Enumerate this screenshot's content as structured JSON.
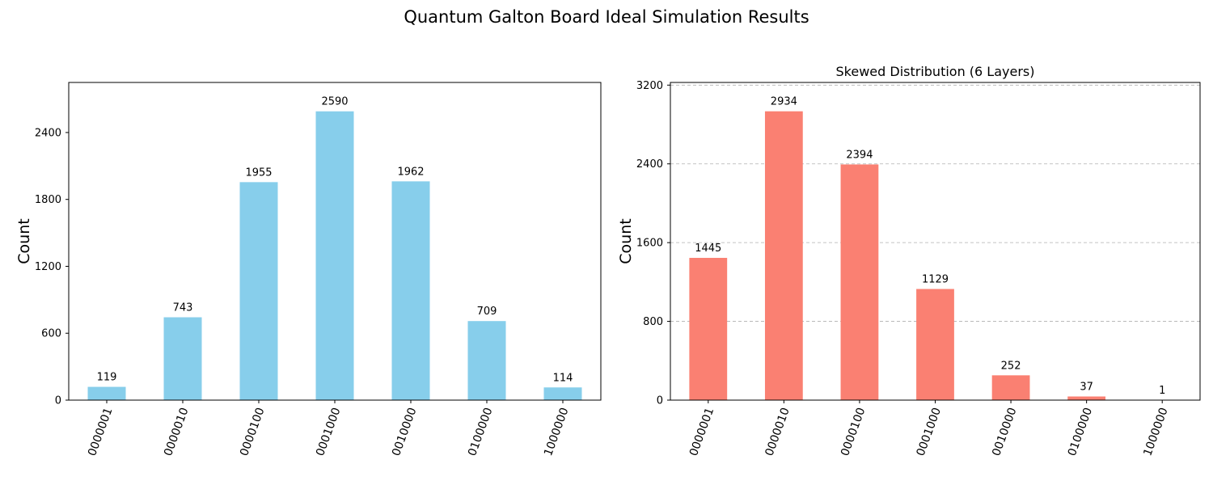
{
  "figure": {
    "suptitle": "Quantum Galton Board Ideal Simulation Results"
  },
  "chart_data": [
    {
      "type": "bar",
      "title": "",
      "xlabel": "",
      "ylabel": "Count",
      "categories": [
        "0000001",
        "0000010",
        "0000100",
        "0001000",
        "0010000",
        "0100000",
        "1000000"
      ],
      "values": [
        119,
        743,
        1955,
        2590,
        1962,
        709,
        114
      ],
      "data_labels": [
        "119",
        "743",
        "1955",
        "2590",
        "1962",
        "709",
        "114"
      ],
      "yticks": [
        0,
        600,
        1200,
        1800,
        2400
      ],
      "ytick_labels": [
        "0",
        "600",
        "1200",
        "1800",
        "2400"
      ],
      "ylim": [
        0,
        2849
      ],
      "grid": false,
      "bar_color": "#87ceeb",
      "xtick_rotation": -70
    },
    {
      "type": "bar",
      "title": "Skewed Distribution (6 Layers)",
      "xlabel": "",
      "ylabel": "Count",
      "categories": [
        "0000001",
        "0000010",
        "0000100",
        "0001000",
        "0010000",
        "0100000",
        "1000000"
      ],
      "values": [
        1445,
        2934,
        2394,
        1129,
        252,
        37,
        1
      ],
      "data_labels": [
        "1445",
        "2934",
        "2394",
        "1129",
        "252",
        "37",
        "1"
      ],
      "yticks": [
        0,
        800,
        1600,
        2400,
        3200
      ],
      "ytick_labels": [
        "0",
        "800",
        "1600",
        "2400",
        "3200"
      ],
      "ylim": [
        0,
        3227
      ],
      "grid": true,
      "grid_axis": "y",
      "bar_color": "#fa8072",
      "xtick_rotation": -70
    }
  ]
}
